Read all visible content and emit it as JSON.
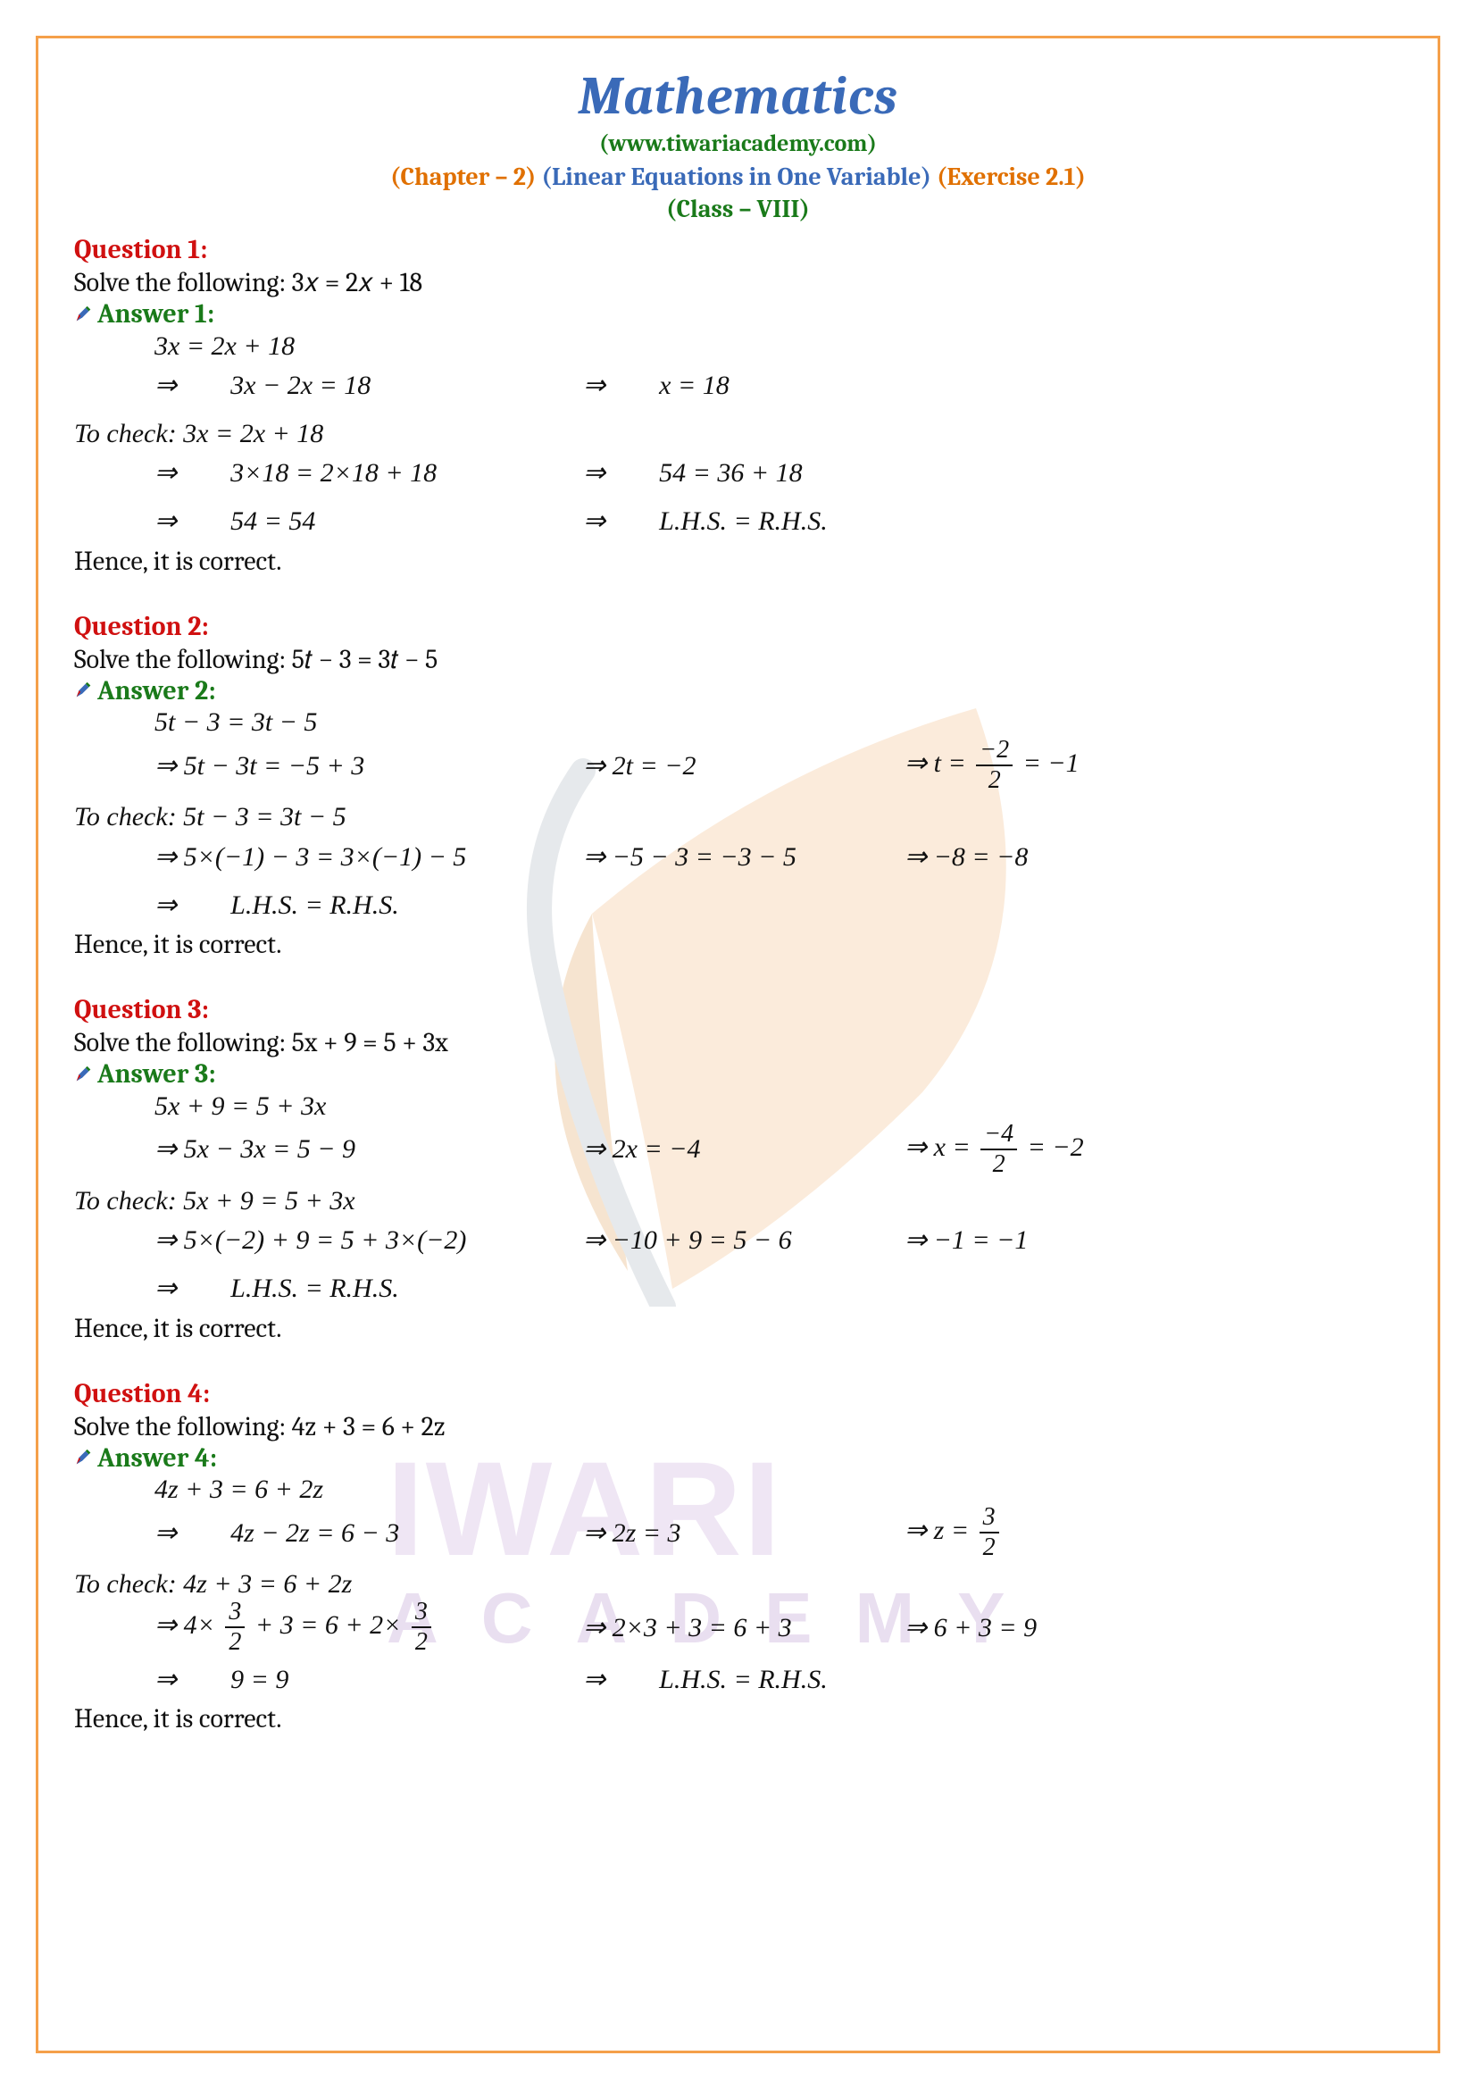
{
  "header": {
    "title": "Mathematics",
    "url": "(www.tiwariacademy.com)",
    "chapter_prefix": "(Chapter – 2)",
    "chapter_name": "(Linear Equations in One Variable)",
    "exercise": "(Exercise 2.1)",
    "class": "(Class – VIII)"
  },
  "colors": {
    "border": "#f5a04a",
    "title": "#3a6ab8",
    "green": "#1a7a1a",
    "orange": "#e07000",
    "blue": "#3a6ab8",
    "red": "#d01010",
    "text": "#111111",
    "wm_purple_light": "#d3b8e0",
    "wm_purple_dark": "#c3a4d6",
    "leaf_orange": "#f4c79a",
    "leaf_stem": "#b9c1c9"
  },
  "watermark": {
    "line1": "IWARI",
    "line2": "ACADEMY"
  },
  "questions": [
    {
      "q_label": "Question 1:",
      "solve": "Solve the following: 3𝑥 = 2𝑥 + 18",
      "a_label": "Answer 1:",
      "eq_first": "3x = 2x + 18",
      "steps": [
        {
          "c1": "⇒  3x − 2x = 18",
          "c2": "⇒  x = 18",
          "c3": ""
        }
      ],
      "check_label": "To check:  3x = 2x + 18",
      "check_steps": [
        {
          "c1": "⇒  3×18 = 2×18 + 18",
          "c2": "⇒  54 = 36 + 18",
          "c3": ""
        },
        {
          "c1": "⇒  54 = 54",
          "c2": "⇒  L.H.S. = R.H.S.",
          "c3": ""
        }
      ],
      "conclude": "Hence, it is correct."
    },
    {
      "q_label": "Question 2:",
      "solve": "Solve the following: 5𝑡 − 3 = 3𝑡 − 5",
      "a_label": "Answer 2:",
      "eq_first": "5t − 3 = 3t − 5",
      "steps": [
        {
          "c1": "⇒ 5t − 3t = −5 + 3",
          "c2": "⇒ 2t = −2",
          "c3_html": "⇒ <span class='math-italic'>t</span> = <span class='frac'><span class='num'>−2</span><span class='den'>2</span></span> = −1"
        }
      ],
      "check_label": "To check:  5t − 3 = 3t − 5",
      "check_steps": [
        {
          "c1": "⇒ 5×(−1) − 3 = 3×(−1) − 5",
          "c2": "⇒ −5 − 3 = −3 − 5",
          "c3": "⇒ −8 = −8"
        },
        {
          "c1": "⇒  L.H.S. = R.H.S.",
          "c2": "",
          "c3": ""
        }
      ],
      "conclude": "Hence, it is correct."
    },
    {
      "q_label": "Question 3:",
      "solve": " Solve the following:  5x  +  9  =  5  +  3x",
      "a_label": "Answer 3:",
      "eq_first": "5x + 9 = 5 + 3x",
      "steps": [
        {
          "c1": "⇒ 5x − 3x = 5 − 9",
          "c2": "⇒ 2x = −4",
          "c3_html": "⇒ <span class='math-italic'>x</span> = <span class='frac'><span class='num'>−4</span><span class='den'>2</span></span> = −2"
        }
      ],
      "check_label": "To check:  5x + 9 = 5 + 3x",
      "check_steps": [
        {
          "c1": "⇒ 5×(−2) + 9 = 5 + 3×(−2)",
          "c2": "⇒ −10 + 9 = 5 − 6",
          "c3": "⇒ −1 = −1"
        },
        {
          "c1": "⇒  L.H.S. = R.H.S.",
          "c2": "",
          "c3": ""
        }
      ],
      "conclude": "Hence, it is correct."
    },
    {
      "q_label": "Question 4:",
      "solve": "Solve the following: 4z  +  3  =  6  +  2z",
      "a_label": "Answer 4:",
      "eq_first": "4z + 3 = 6 + 2z",
      "steps": [
        {
          "c1": "⇒  4z − 2z = 6 − 3",
          "c2": "⇒ 2z = 3",
          "c3_html": "⇒ <span class='math-italic'>z</span> = <span class='frac'><span class='num'>3</span><span class='den'>2</span></span>"
        }
      ],
      "check_label": "To check:  4z + 3 = 6 + 2z",
      "check_steps": [
        {
          "c1_html": "⇒ 4× <span class='frac'><span class='num'>3</span><span class='den'>2</span></span> + 3 = 6 + 2× <span class='frac'><span class='num'>3</span><span class='den'>2</span></span>",
          "c2": "⇒ 2×3 + 3 = 6 + 3",
          "c3": "⇒ 6 + 3 = 9"
        },
        {
          "c1": "⇒  9 = 9",
          "c2": "⇒  L.H.S. = R.H.S.",
          "c3": ""
        }
      ],
      "conclude": "Hence, it is correct."
    }
  ]
}
